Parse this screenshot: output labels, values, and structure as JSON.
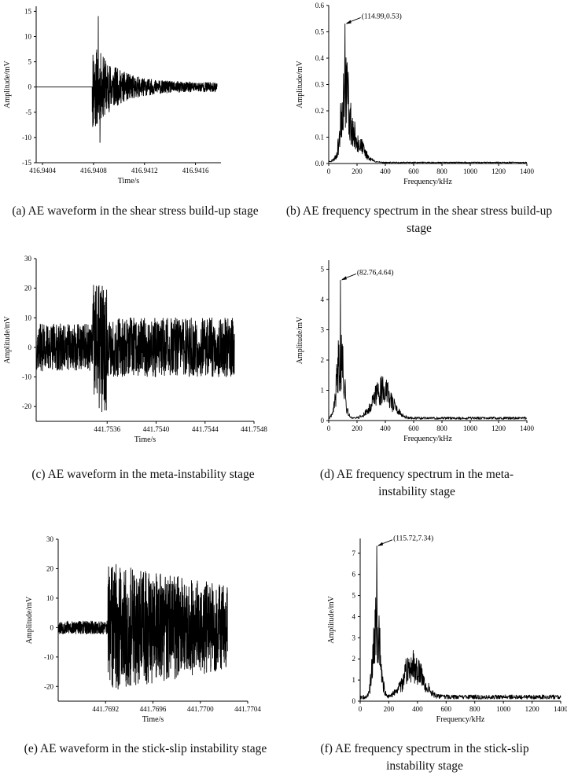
{
  "figure": {
    "captions": [
      "(a) AE waveform in the shear stress build-up stage",
      "(b) AE frequency spectrum in the shear stress build-up stage",
      "(c) AE waveform in the meta-instability stage",
      "(d) AE frequency spectrum in the meta-instability stage",
      "(e) AE waveform in the stick-slip instability stage",
      "(f) AE frequency spectrum in the stick-slip instability stage"
    ]
  },
  "chart_data": [
    {
      "id": "a",
      "type": "line",
      "xlabel": "Time/s",
      "ylabel": "Amplitude/mV",
      "xlim": [
        416.94035,
        416.9418
      ],
      "ylim": [
        -15,
        16
      ],
      "xticks": [
        416.9404,
        416.9408,
        416.9412,
        416.9416
      ],
      "xtick_labels": [
        "416.9404",
        "416.9408",
        "416.9412",
        "416.9416"
      ],
      "yticks": [
        -15,
        -10,
        -5,
        0,
        5,
        10,
        15
      ],
      "signal": {
        "t_start": 416.94035,
        "t_burst": 416.94079,
        "t_end": 416.94177,
        "peak_pos": 14,
        "peak_neg": -11,
        "decay": "exponential"
      }
    },
    {
      "id": "b",
      "type": "line",
      "xlabel": "Frequency/kHz",
      "ylabel": "Amplitude/mV",
      "xlim": [
        0,
        1400
      ],
      "ylim": [
        0,
        0.6
      ],
      "xticks": [
        0,
        200,
        400,
        600,
        800,
        1000,
        1200,
        1400
      ],
      "yticks": [
        0.0,
        0.1,
        0.2,
        0.3,
        0.4,
        0.5,
        0.6
      ],
      "ytick_labels": [
        "0.0",
        "0.1",
        "0.2",
        "0.3",
        "0.4",
        "0.5",
        "0.6"
      ],
      "peak": {
        "x": 114.99,
        "y": 0.53,
        "label": "(114.99,0.53)"
      },
      "signal": {
        "f_max": 1400,
        "secondary_bump": {
          "x": 170,
          "y": 0.12
        },
        "tail_to": 520
      }
    },
    {
      "id": "c",
      "type": "line",
      "xlabel": "Time/s",
      "ylabel": "Amplitude/mV",
      "xlim": [
        441.75302,
        441.7548
      ],
      "ylim": [
        -25,
        30
      ],
      "xticks": [
        441.7536,
        441.754,
        441.7544,
        441.7548
      ],
      "xtick_labels": [
        "441.7536",
        "441.7540",
        "441.7544",
        "441.7548"
      ],
      "yticks": [
        -20,
        -10,
        0,
        10,
        20,
        30
      ],
      "signal": {
        "t_start": 441.75302,
        "t_burst": 441.75348,
        "t_end": 441.75464,
        "burst_amp": 22,
        "noise_amp": 10
      }
    },
    {
      "id": "d",
      "type": "line",
      "xlabel": "Frequency/kHz",
      "ylabel": "Amplitude/mV",
      "xlim": [
        0,
        1400
      ],
      "ylim": [
        0,
        5.3
      ],
      "xticks": [
        0,
        200,
        400,
        600,
        800,
        1000,
        1200,
        1400
      ],
      "yticks": [
        0,
        1,
        2,
        3,
        4,
        5
      ],
      "peak": {
        "x": 82.76,
        "y": 4.64,
        "label": "(82.76,4.64)"
      },
      "signal": {
        "f_max": 1400,
        "secondary_bump": {
          "x": 380,
          "y": 1.2
        },
        "floor": 0.08
      }
    },
    {
      "id": "e",
      "type": "line",
      "xlabel": "Time/s",
      "ylabel": "Amplitude/mV",
      "xlim": [
        441.7688,
        441.7704
      ],
      "ylim": [
        -25,
        30
      ],
      "xticks": [
        441.7692,
        441.7696,
        441.77,
        441.7704
      ],
      "xtick_labels": [
        "441.7692",
        "441.7696",
        "441.7700",
        "441.7704"
      ],
      "yticks": [
        -20,
        -10,
        0,
        10,
        20,
        30
      ],
      "signal": {
        "t_start": 441.7688,
        "t_burst": 441.76922,
        "t_end": 441.77023,
        "burst_amp": 22
      }
    },
    {
      "id": "f",
      "type": "line",
      "xlabel": "Frequency/kHz",
      "ylabel": "Amplitude/mV",
      "xlim": [
        0,
        1400
      ],
      "ylim": [
        0,
        7.7
      ],
      "xticks": [
        0,
        200,
        400,
        600,
        800,
        1000,
        1200,
        1400
      ],
      "yticks": [
        0,
        1,
        2,
        3,
        4,
        5,
        6,
        7
      ],
      "peak": {
        "x": 115.72,
        "y": 7.34,
        "label": "(115.72,7.34)"
      },
      "signal": {
        "f_max": 1400,
        "secondary_bump": {
          "x": 370,
          "y": 1.9
        },
        "floor": 0.2
      }
    }
  ]
}
